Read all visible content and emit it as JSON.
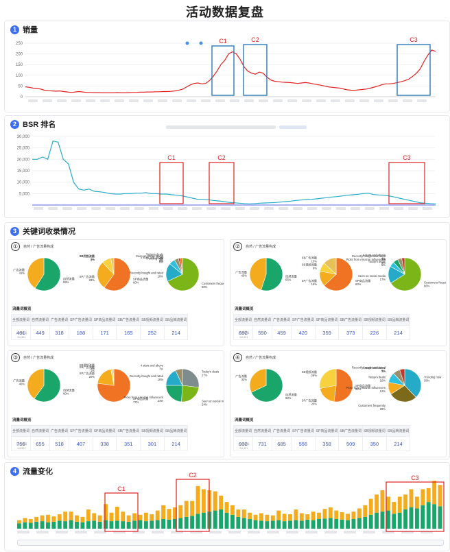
{
  "page_title": "活动数据复盘",
  "sections": {
    "s1": {
      "num": "1",
      "title": "销量"
    },
    "s2": {
      "num": "2",
      "title": "BSR 排名"
    },
    "s3": {
      "num": "3",
      "title": "关键词收录情况"
    },
    "s4": {
      "num": "4",
      "title": "流量变化"
    }
  },
  "chart_data": [
    {
      "type": "line",
      "title": "销量",
      "ylim": [
        0,
        250
      ],
      "yticks": [
        0,
        50,
        100,
        150,
        200,
        250
      ],
      "grid": true,
      "color": "#e02020",
      "values": [
        46,
        44,
        40,
        38,
        36,
        30,
        28,
        27,
        26,
        27,
        24,
        22,
        20,
        22,
        24,
        22,
        20,
        20,
        19,
        19,
        18,
        18,
        18,
        18,
        19,
        18,
        18,
        19,
        20,
        20,
        21,
        21,
        22,
        22,
        23,
        23,
        24,
        24,
        25,
        27,
        30,
        35,
        45,
        55,
        62,
        64,
        60,
        62,
        75,
        95,
        120,
        150,
        170,
        200,
        210,
        200,
        175,
        140,
        120,
        110,
        105,
        115,
        110,
        92,
        78,
        72,
        70,
        68,
        67,
        66,
        64,
        62,
        64,
        66,
        64,
        60,
        57,
        54,
        50,
        46,
        44,
        42,
        40,
        36,
        32,
        30,
        30,
        32,
        34,
        36,
        40,
        45,
        50,
        56,
        60,
        60,
        62,
        66,
        70,
        75,
        82,
        95,
        110,
        130,
        165,
        195,
        218,
        212
      ],
      "highlights": [
        "C1",
        "C2",
        "C3"
      ]
    },
    {
      "type": "line",
      "title": "BSR 排名",
      "ylim": [
        0,
        30000
      ],
      "yticks": [
        "30,000",
        "25,000",
        "20,000",
        "15,000",
        "10,000",
        "5,000"
      ],
      "grid": true,
      "color": "#25aac8",
      "values": [
        20000,
        20000,
        21000,
        20000,
        28000,
        27500,
        20000,
        18000,
        10000,
        7000,
        6500,
        7000,
        6000,
        5800,
        5500,
        5000,
        4800,
        4800,
        5000,
        5000,
        5200,
        5200,
        5400,
        5000,
        5000,
        4800,
        4800,
        4500,
        4300,
        4000,
        3500,
        3000,
        2500,
        2500,
        2300,
        2000,
        1800,
        1500,
        1200,
        1000,
        800,
        600,
        500,
        600,
        800,
        900,
        1000,
        1100,
        1300,
        1500,
        1700,
        2000,
        2200,
        2400,
        2500,
        2700,
        3000,
        3200,
        3500,
        3700,
        4000,
        4300,
        4500,
        4700,
        5000,
        5200,
        4600,
        4400,
        4300,
        4000,
        3500,
        3000,
        2500,
        2000,
        1500,
        1000,
        800,
        600,
        500
      ],
      "highlights": [
        "C1",
        "C2",
        "C3"
      ]
    },
    {
      "type": "bar",
      "title": "流量变化",
      "stacked": true,
      "series": [
        {
          "color": "#1aa56a",
          "values": [
            10,
            12,
            11,
            13,
            14,
            12,
            13,
            15,
            14,
            16,
            13,
            12,
            14,
            15,
            13,
            16,
            14,
            15,
            14,
            13,
            15,
            16,
            14,
            15,
            16,
            18,
            17,
            18,
            20,
            22,
            24,
            28,
            30,
            32,
            34,
            36,
            30,
            26,
            22,
            20,
            18,
            16,
            15,
            14,
            15,
            16,
            14,
            15,
            16,
            15,
            17,
            16,
            18,
            19,
            20,
            18,
            17,
            16,
            18,
            20,
            22,
            26,
            30,
            32,
            34,
            28,
            30,
            36,
            40,
            38,
            44,
            50,
            46,
            42
          ]
        },
        {
          "color": "#f4ac1e",
          "values": [
            6,
            8,
            7,
            9,
            11,
            14,
            10,
            12,
            18,
            16,
            12,
            10,
            22,
            14,
            12,
            30,
            16,
            26,
            18,
            12,
            14,
            10,
            16,
            12,
            18,
            26,
            20,
            22,
            24,
            30,
            28,
            52,
            44,
            40,
            36,
            26,
            20,
            18,
            14,
            16,
            12,
            10,
            14,
            12,
            10,
            18,
            14,
            12,
            20,
            14,
            10,
            16,
            12,
            18,
            20,
            16,
            14,
            12,
            14,
            18,
            22,
            30,
            34,
            40,
            26,
            22,
            30,
            28,
            34,
            22,
            30,
            26,
            44,
            40
          ]
        }
      ],
      "highlights": [
        "C1",
        "C2",
        "C3"
      ]
    }
  ],
  "keyword_panels": [
    {
      "num": "①",
      "caption": "自然 / 广告流量构成",
      "pies": [
        {
          "slices": [
            {
              "label": "自然流量",
              "value": 59,
              "color": "#1aa56a"
            },
            {
              "label": "广告流量",
              "value": 41,
              "color": "#f4ac1e"
            }
          ]
        },
        {
          "slices": [
            {
              "label": "SP商品流量",
              "value": 60,
              "color": "#f07324"
            },
            {
              "label": "SP广告流量",
              "value": 28,
              "color": "#f4ac1e"
            },
            {
              "label": "SB视频流量",
              "value": 9,
              "color": "#f7d23e"
            },
            {
              "label": "SB广告流量",
              "value": 3,
              "color": "#e8c05a"
            }
          ]
        },
        {
          "slices": [
            {
              "label": "Customers frequently",
              "value": 68,
              "color": "#7cb518"
            },
            {
              "label": "Recently bought and rated",
              "value": 18,
              "color": "#25aac8"
            },
            {
              "label": "Trending now",
              "value": 6,
              "color": "#2fbfdf"
            },
            {
              "label": "4 stars and above",
              "value": 4,
              "color": "#9a8f6a"
            },
            {
              "label": "Today's deals",
              "value": 2,
              "color": "#c0392b"
            },
            {
              "label": "Seen on social media",
              "value": 2,
              "color": "#e67e22"
            }
          ]
        }
      ],
      "table_title": "流量词概览",
      "headers": [
        "全部流量词",
        "自然流量词",
        "广告流量词",
        "SP广告流量词",
        "SP商品流量词",
        "SB广告流量词",
        "SB视频流量词",
        "SB品牌流量词"
      ],
      "values": [
        "491",
        "449",
        "318",
        "188",
        "171",
        "165",
        "252",
        "214"
      ],
      "subnote": "历史最高94,321"
    },
    {
      "num": "②",
      "caption": "自然 / 广告流量构成",
      "pies": [
        {
          "slices": [
            {
              "label": "自然流量",
              "value": 55,
              "color": "#1aa56a"
            },
            {
              "label": "广告流量",
              "value": 45,
              "color": "#f4ac1e"
            }
          ]
        },
        {
          "slices": [
            {
              "label": "SP商品流量",
              "value": 63,
              "color": "#f07324"
            },
            {
              "label": "SP广告流量",
              "value": 15,
              "color": "#f4ac1e"
            },
            {
              "label": "SB视频流量",
              "value": 9,
              "color": "#f7d23e"
            },
            {
              "label": "SB广告流量",
              "value": 13,
              "color": "#e8c05a"
            }
          ]
        },
        {
          "slices": [
            {
              "label": "Customers frequently",
              "value": 66,
              "color": "#7cb518"
            },
            {
              "label": "Seen on social media",
              "value": 17,
              "color": "#25aac8"
            },
            {
              "label": "Today's deals",
              "value": 5,
              "color": "#2fbfdf"
            },
            {
              "label": "Picks from Amazon Influencers",
              "value": 5,
              "color": "#1aa56a"
            },
            {
              "label": "4 stars and above",
              "value": 4,
              "color": "#9a8f6a"
            },
            {
              "label": "Recently bought and rated",
              "value": 3,
              "color": "#c0392b"
            }
          ]
        }
      ],
      "table_title": "流量词概览",
      "headers": [
        "全部流量词",
        "自然流量词",
        "广告流量词",
        "SP广告流量词",
        "SP商品流量词",
        "SB广告流量词",
        "SB视频流量词",
        "SB品牌流量词"
      ],
      "values": [
        "692",
        "590",
        "459",
        "420",
        "359",
        "373",
        "226",
        "214"
      ],
      "subnote": "历史最高94,321"
    },
    {
      "num": "③",
      "caption": "自然 / 广告流量构成",
      "pies": [
        {
          "slices": [
            {
              "label": "自然流量",
              "value": 60,
              "color": "#1aa56a"
            },
            {
              "label": "广告流量",
              "value": 40,
              "color": "#f4ac1e"
            }
          ]
        },
        {
          "slices": [
            {
              "label": "SP商品流量",
              "value": 77,
              "color": "#f07324"
            },
            {
              "label": "SP广告流量",
              "value": 20,
              "color": "#f4ac1e"
            },
            {
              "label": "SB视频流量",
              "value": 2,
              "color": "#f7d23e"
            },
            {
              "label": "SB广告流量",
              "value": 1,
              "color": "#e8c05a"
            }
          ]
        },
        {
          "slices": [
            {
              "label": "Today's deals",
              "value": 27,
              "color": "#7f8c8d"
            },
            {
              "label": "Seen on social media",
              "value": 24,
              "color": "#7cb518"
            },
            {
              "label": "Picks from Amazon Influencers",
              "value": 24,
              "color": "#1aa56a"
            },
            {
              "label": "Recently bought and rated",
              "value": 18,
              "color": "#25aac8"
            },
            {
              "label": "4 stars and above",
              "value": 7,
              "color": "#9a8f6a"
            }
          ]
        }
      ],
      "table_title": "流量词概览",
      "headers": [
        "全部流量词",
        "自然流量词",
        "广告流量词",
        "SP广告流量词",
        "SP商品流量词",
        "SB广告流量词",
        "SB视频流量词",
        "SB品牌流量词"
      ],
      "values": [
        "759",
        "655",
        "518",
        "407",
        "338",
        "351",
        "301",
        "214"
      ],
      "subnote": "历史最高94,321"
    },
    {
      "num": "④",
      "caption": "自然 / 广告流量构成",
      "pies": [
        {
          "slices": [
            {
              "label": "自然流量",
              "value": 68,
              "color": "#1aa56a"
            },
            {
              "label": "广告流量",
              "value": 32,
              "color": "#f4ac1e"
            }
          ]
        },
        {
          "slices": [
            {
              "label": "SP商品流量",
              "value": 52,
              "color": "#f07324"
            },
            {
              "label": "SP广告流量",
              "value": 20,
              "color": "#f4ac1e"
            },
            {
              "label": "SB视频流量",
              "value": 28,
              "color": "#f7d23e"
            }
          ]
        },
        {
          "slices": [
            {
              "label": "Trending now",
              "value": 38,
              "color": "#25aac8"
            },
            {
              "label": "Customers frequently",
              "value": 28,
              "color": "#7a6a1a"
            },
            {
              "label": "Picks from Amazon Influencers",
              "value": 12,
              "color": "#f4ac1e"
            },
            {
              "label": "Today's deals",
              "value": 10,
              "color": "#2fbfdf"
            },
            {
              "label": "4 stars and above",
              "value": 7,
              "color": "#9a8f6a"
            },
            {
              "label": "Recently bought and rated",
              "value": 5,
              "color": "#c0392b"
            }
          ]
        }
      ],
      "table_title": "流量词概览",
      "headers": [
        "全部流量词",
        "自然流量词",
        "广告流量词",
        "SP广告流量词",
        "SP商品流量词",
        "SB广告流量词",
        "SB视频流量词",
        "SB品牌流量词"
      ],
      "values": [
        "932",
        "731",
        "685",
        "556",
        "358",
        "509",
        "350",
        "214"
      ],
      "subnote": "历史最高94,321"
    }
  ]
}
